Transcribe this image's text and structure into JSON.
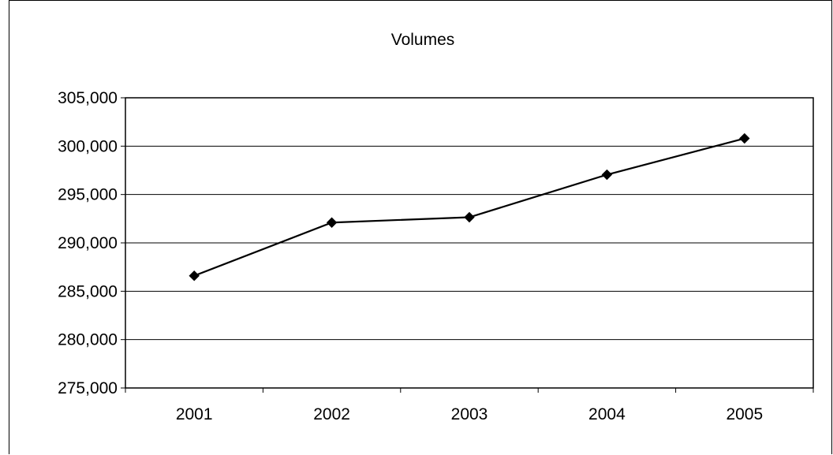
{
  "chart_data": {
    "type": "line",
    "title": "Volumes",
    "xlabel": "",
    "ylabel": "",
    "categories": [
      "2001",
      "2002",
      "2003",
      "2004",
      "2005"
    ],
    "series": [
      {
        "values": [
          286600,
          292100,
          292650,
          297050,
          300800
        ],
        "color": "#000000",
        "marker": "diamond"
      }
    ],
    "ylim": [
      275000,
      305000
    ],
    "yticks": [
      275000,
      280000,
      285000,
      290000,
      295000,
      300000,
      305000
    ],
    "ytick_labels": [
      "275,000",
      "280,000",
      "285,000",
      "290,000",
      "295,000",
      "300,000",
      "305,000"
    ],
    "grid": true,
    "legend": "none"
  }
}
